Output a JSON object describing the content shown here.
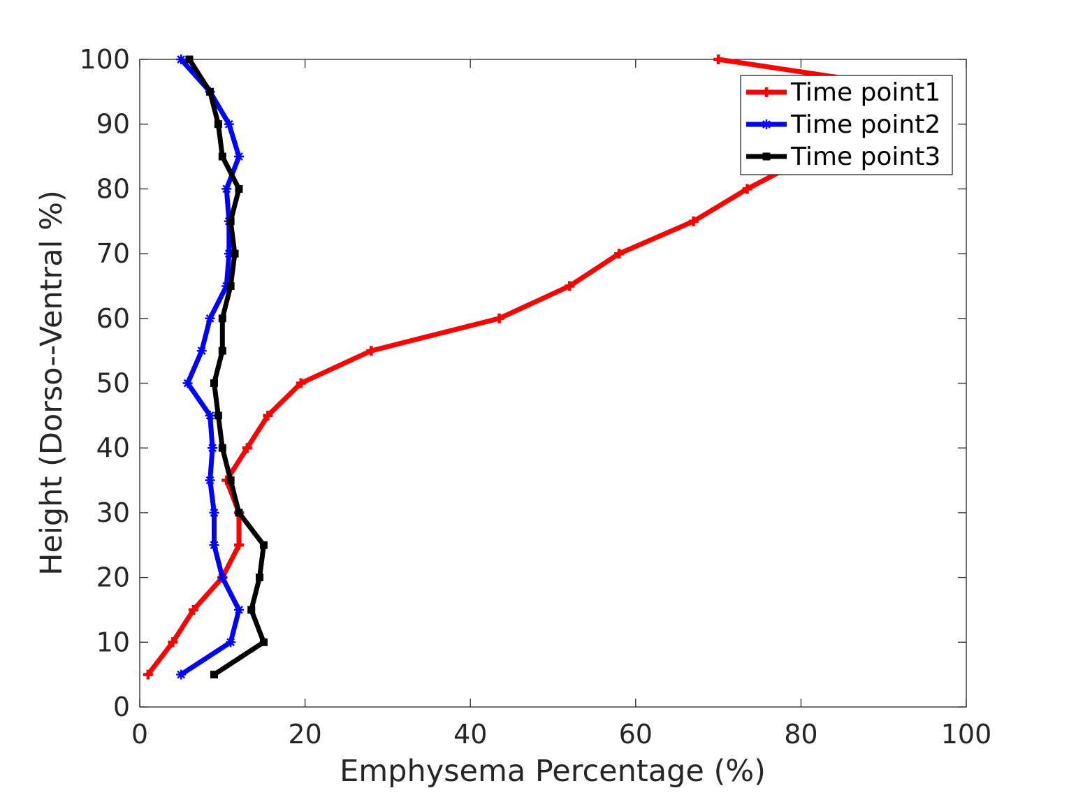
{
  "chart_data": {
    "type": "line",
    "title": "",
    "xlabel": "Emphysema Percentage (%)",
    "ylabel": "Height (Dorso--Ventral %)",
    "xlim": [
      0,
      100
    ],
    "ylim": [
      0,
      100
    ],
    "xticks": [
      0,
      20,
      40,
      60,
      80,
      100
    ],
    "yticks": [
      0,
      10,
      20,
      30,
      40,
      50,
      60,
      70,
      80,
      90,
      100
    ],
    "grid": false,
    "legend_position": "top-right",
    "series": [
      {
        "name": "Time point1",
        "color": "#ff0000",
        "marker": "cross",
        "x": [
          1.0,
          4.0,
          6.5,
          10.0,
          12.0,
          12.0,
          10.5,
          13.0,
          15.5,
          19.5,
          28.0,
          43.5,
          52.0,
          58.0,
          67.0,
          73.5,
          81.0,
          88.0,
          96.0,
          70.0
        ],
        "y": [
          5,
          10,
          15,
          20,
          25,
          30,
          35,
          40,
          45,
          50,
          55,
          60,
          65,
          70,
          75,
          80,
          85,
          90,
          95,
          100
        ]
      },
      {
        "name": "Time point2",
        "color": "#0000ff",
        "marker": "star",
        "x": [
          5.0,
          11.0,
          12.0,
          10.0,
          9.0,
          9.0,
          8.5,
          8.8,
          8.5,
          5.8,
          7.5,
          8.5,
          10.5,
          10.8,
          10.8,
          10.5,
          12.0,
          10.8,
          8.5,
          5.0
        ],
        "y": [
          5,
          10,
          15,
          20,
          25,
          30,
          35,
          40,
          45,
          50,
          55,
          60,
          65,
          70,
          75,
          80,
          85,
          90,
          95,
          100
        ]
      },
      {
        "name": "Time point3",
        "color": "#000000",
        "marker": "square",
        "x": [
          9.0,
          15.0,
          13.5,
          14.5,
          15.0,
          12.0,
          11.0,
          10.0,
          9.5,
          9.0,
          10.0,
          10.0,
          11.0,
          11.5,
          11.0,
          12.0,
          10.0,
          9.5,
          8.5,
          6.0
        ],
        "y": [
          5,
          10,
          15,
          20,
          25,
          30,
          35,
          40,
          45,
          50,
          55,
          60,
          65,
          70,
          75,
          80,
          85,
          90,
          95,
          100
        ]
      }
    ]
  }
}
